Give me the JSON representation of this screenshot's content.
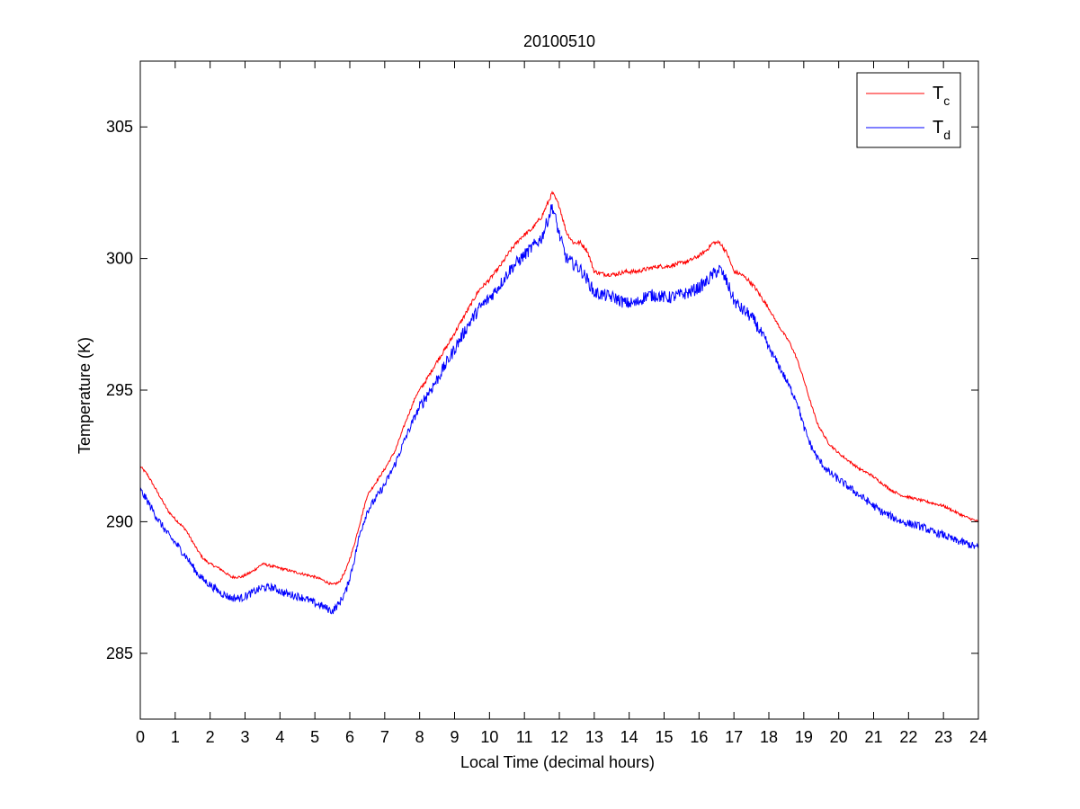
{
  "chart_data": {
    "type": "line",
    "title": "20100510",
    "xlabel": "Local Time (decimal hours)",
    "ylabel": "Temperature (K)",
    "xlim": [
      0,
      24
    ],
    "ylim": [
      282.5,
      307.5
    ],
    "xticks": [
      0,
      1,
      2,
      3,
      4,
      5,
      6,
      7,
      8,
      9,
      10,
      11,
      12,
      13,
      14,
      15,
      16,
      17,
      18,
      19,
      20,
      21,
      22,
      23,
      24
    ],
    "yticks": [
      285,
      290,
      295,
      300,
      305
    ],
    "grid": false,
    "legend_position": "top-right",
    "series": [
      {
        "name": "Tc",
        "legend_main": "T",
        "legend_sub": "c",
        "color": "#ff0000",
        "noise": 0.05,
        "x": [
          0,
          0.2,
          0.5,
          0.8,
          1.0,
          1.3,
          1.6,
          1.8,
          2.0,
          2.3,
          2.6,
          2.9,
          3.2,
          3.5,
          3.8,
          4.1,
          4.4,
          4.7,
          5.0,
          5.2,
          5.5,
          5.7,
          5.9,
          6.1,
          6.3,
          6.5,
          6.7,
          7.0,
          7.3,
          7.6,
          7.9,
          8.2,
          8.5,
          8.8,
          9.1,
          9.4,
          9.7,
          10.0,
          10.3,
          10.6,
          10.9,
          11.2,
          11.5,
          11.7,
          11.8,
          12.0,
          12.2,
          12.4,
          12.6,
          12.8,
          13.0,
          13.3,
          13.6,
          13.9,
          14.2,
          14.5,
          14.8,
          15.1,
          15.4,
          15.7,
          16.0,
          16.2,
          16.4,
          16.6,
          16.8,
          17.0,
          17.2,
          17.4,
          17.6,
          17.8,
          18.0,
          18.3,
          18.6,
          18.8,
          19.0,
          19.2,
          19.4,
          19.7,
          20.0,
          20.3,
          20.6,
          20.9,
          21.2,
          21.5,
          21.8,
          22.1,
          22.4,
          22.7,
          23.0,
          23.3,
          23.6,
          24.0
        ],
        "y": [
          292.1,
          291.8,
          291.1,
          290.4,
          290.1,
          289.7,
          289.0,
          288.6,
          288.4,
          288.2,
          287.9,
          287.9,
          288.1,
          288.4,
          288.3,
          288.2,
          288.1,
          288.0,
          287.9,
          287.8,
          287.6,
          287.7,
          288.2,
          289.0,
          290.0,
          291.0,
          291.4,
          292.0,
          292.7,
          293.8,
          294.8,
          295.4,
          296.1,
          296.7,
          297.4,
          298.1,
          298.8,
          299.2,
          299.7,
          300.3,
          300.8,
          301.1,
          301.6,
          302.2,
          302.5,
          302.0,
          301.0,
          300.6,
          300.6,
          300.3,
          299.5,
          299.4,
          299.4,
          299.5,
          299.5,
          299.6,
          299.7,
          299.7,
          299.8,
          299.9,
          300.1,
          300.3,
          300.6,
          300.6,
          300.2,
          299.5,
          299.4,
          299.2,
          298.9,
          298.5,
          298.1,
          297.4,
          296.8,
          296.2,
          295.4,
          294.5,
          293.7,
          293.0,
          292.6,
          292.3,
          292.0,
          291.8,
          291.5,
          291.2,
          291.0,
          290.9,
          290.8,
          290.7,
          290.6,
          290.4,
          290.2,
          290.0
        ]
      },
      {
        "name": "Td",
        "legend_main": "T",
        "legend_sub": "d",
        "color": "#0000ff",
        "noise": 0.15,
        "x": [
          0,
          0.2,
          0.5,
          0.8,
          1.0,
          1.3,
          1.6,
          1.8,
          2.0,
          2.3,
          2.6,
          2.9,
          3.2,
          3.5,
          3.8,
          4.1,
          4.4,
          4.7,
          5.0,
          5.2,
          5.5,
          5.7,
          5.9,
          6.1,
          6.3,
          6.5,
          6.7,
          7.0,
          7.3,
          7.6,
          7.9,
          8.2,
          8.5,
          8.8,
          9.1,
          9.4,
          9.7,
          10.0,
          10.3,
          10.6,
          10.9,
          11.2,
          11.5,
          11.7,
          11.8,
          12.0,
          12.2,
          12.4,
          12.6,
          12.8,
          13.0,
          13.3,
          13.6,
          13.9,
          14.2,
          14.5,
          14.8,
          15.1,
          15.4,
          15.7,
          16.0,
          16.2,
          16.4,
          16.6,
          16.8,
          17.0,
          17.2,
          17.4,
          17.6,
          17.8,
          18.0,
          18.3,
          18.6,
          18.8,
          19.0,
          19.2,
          19.4,
          19.7,
          20.0,
          20.3,
          20.6,
          20.9,
          21.2,
          21.5,
          21.8,
          22.1,
          22.4,
          22.7,
          23.0,
          23.3,
          23.6,
          24.0
        ],
        "y": [
          291.2,
          290.8,
          290.1,
          289.5,
          289.2,
          288.7,
          288.1,
          287.8,
          287.6,
          287.3,
          287.1,
          287.1,
          287.3,
          287.5,
          287.5,
          287.3,
          287.2,
          287.1,
          286.9,
          286.8,
          286.6,
          286.9,
          287.4,
          288.4,
          289.6,
          290.4,
          290.8,
          291.4,
          292.2,
          293.2,
          294.1,
          294.8,
          295.4,
          296.1,
          296.8,
          297.5,
          298.1,
          298.5,
          299.0,
          299.6,
          300.0,
          300.4,
          300.8,
          301.6,
          302.0,
          300.9,
          300.0,
          299.8,
          299.6,
          299.2,
          298.7,
          298.6,
          298.5,
          298.3,
          298.3,
          298.6,
          298.6,
          298.5,
          298.6,
          298.7,
          298.9,
          299.1,
          299.4,
          299.6,
          299.1,
          298.4,
          298.1,
          297.9,
          297.6,
          297.1,
          296.6,
          295.9,
          295.1,
          294.6,
          293.6,
          292.9,
          292.4,
          291.9,
          291.6,
          291.3,
          291.0,
          290.7,
          290.4,
          290.2,
          290.0,
          289.9,
          289.8,
          289.6,
          289.5,
          289.3,
          289.2,
          289.0
        ]
      }
    ]
  }
}
